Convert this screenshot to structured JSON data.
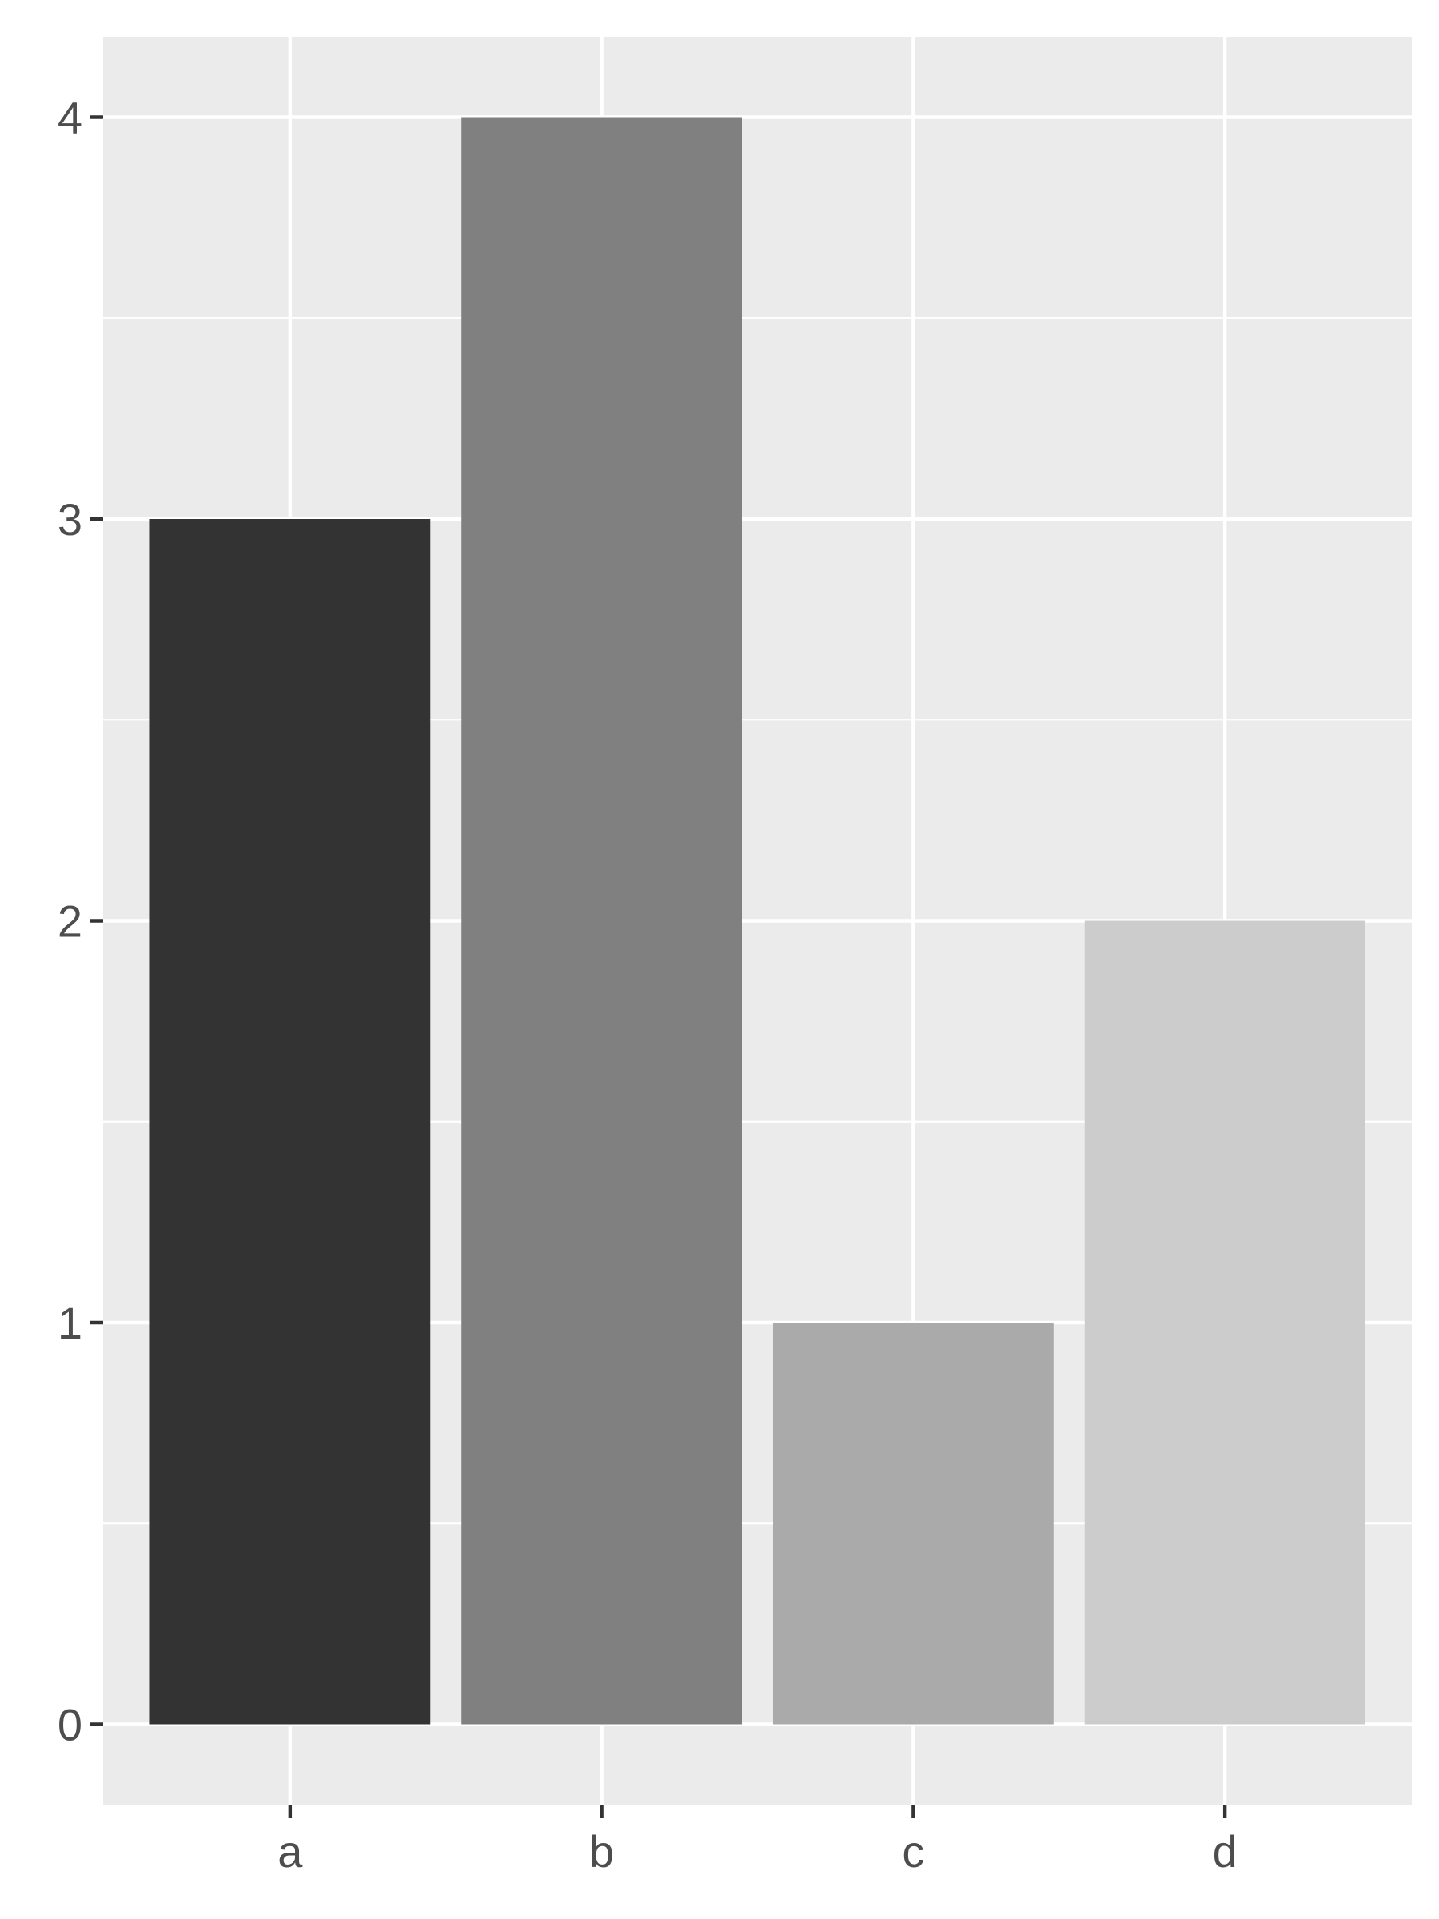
{
  "chart_data": {
    "type": "bar",
    "title": "",
    "xlabel": "",
    "ylabel": "",
    "categories": [
      "a",
      "b",
      "c",
      "d"
    ],
    "values": [
      3,
      4,
      1,
      2
    ],
    "bar_colors": [
      "#333333",
      "#808080",
      "#aaaaaa",
      "#cccccc"
    ],
    "ylim": [
      -0.2,
      4.2
    ],
    "yticks": [
      0,
      1,
      2,
      3,
      4
    ],
    "ytick_labels": [
      "0",
      "1",
      "2",
      "3",
      "4"
    ],
    "grid": true,
    "legend": "none",
    "panel_background": "#ebebeb",
    "grid_color": "#ffffff"
  }
}
